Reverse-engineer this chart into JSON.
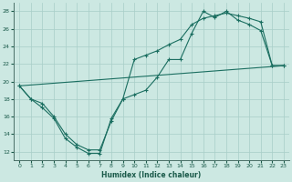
{
  "xlabel": "Humidex (Indice chaleur)",
  "bg_color": "#cce8e2",
  "grid_color": "#a8cec8",
  "line_color": "#1a6e60",
  "spine_color": "#4a7068",
  "label_color": "#1a5a4a",
  "xlim": [
    -0.5,
    23.5
  ],
  "ylim": [
    11,
    29
  ],
  "yticks": [
    12,
    14,
    16,
    18,
    20,
    22,
    24,
    26,
    28
  ],
  "xticks": [
    0,
    1,
    2,
    3,
    4,
    5,
    6,
    7,
    8,
    9,
    10,
    11,
    12,
    13,
    14,
    15,
    16,
    17,
    18,
    19,
    20,
    21,
    22,
    23
  ],
  "curve1_x": [
    0,
    1,
    2,
    3,
    4,
    5,
    6,
    7,
    8,
    9,
    10,
    11,
    12,
    13,
    14,
    15,
    16,
    17,
    18,
    19,
    20,
    21,
    22,
    23
  ],
  "curve1_y": [
    19.5,
    18.0,
    17.0,
    15.8,
    13.5,
    12.5,
    11.8,
    11.8,
    15.8,
    18.0,
    18.5,
    19.0,
    20.5,
    22.5,
    22.5,
    25.5,
    28.0,
    27.3,
    28.0,
    27.0,
    26.5,
    25.8,
    21.8,
    21.8
  ],
  "curve2_x": [
    0,
    1,
    2,
    3,
    4,
    5,
    6,
    7,
    8,
    9,
    10,
    11,
    12,
    13,
    14,
    15,
    16,
    17,
    18,
    19,
    20,
    21,
    22,
    23
  ],
  "curve2_y": [
    19.5,
    18.0,
    17.5,
    16.0,
    14.0,
    12.8,
    12.2,
    12.2,
    15.5,
    18.0,
    22.5,
    23.0,
    23.5,
    24.2,
    24.8,
    26.5,
    27.2,
    27.5,
    27.8,
    27.5,
    27.2,
    26.8,
    21.8,
    21.8
  ],
  "curve3_x": [
    0,
    23
  ],
  "curve3_y": [
    19.5,
    21.8
  ]
}
